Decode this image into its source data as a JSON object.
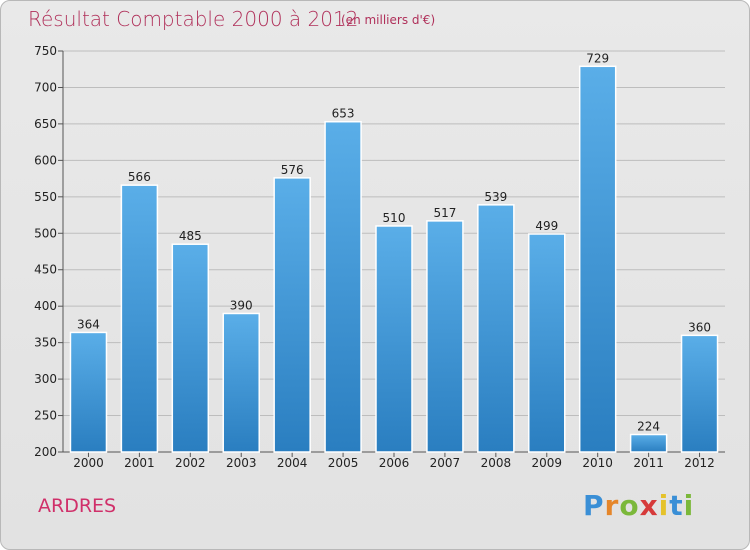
{
  "header": {
    "title": "Résultat Comptable 2000 à 2012",
    "subtitle": "(en milliers d'€)"
  },
  "footer": {
    "commune": "ARDRES",
    "logo": "Proxiti"
  },
  "colors": {
    "title": "#b0305a",
    "bar_light": "#5aaee8",
    "bar_dark": "#2a7ec0"
  },
  "chart_data": {
    "type": "bar",
    "categories": [
      "2000",
      "2001",
      "2002",
      "2003",
      "2004",
      "2005",
      "2006",
      "2007",
      "2008",
      "2009",
      "2010",
      "2011",
      "2012"
    ],
    "values": [
      364,
      566,
      485,
      390,
      576,
      653,
      510,
      517,
      539,
      499,
      729,
      224,
      360
    ],
    "ylim": [
      200,
      750
    ],
    "yticks": [
      200,
      250,
      300,
      350,
      400,
      450,
      500,
      550,
      600,
      650,
      700,
      750
    ],
    "grid": true
  }
}
